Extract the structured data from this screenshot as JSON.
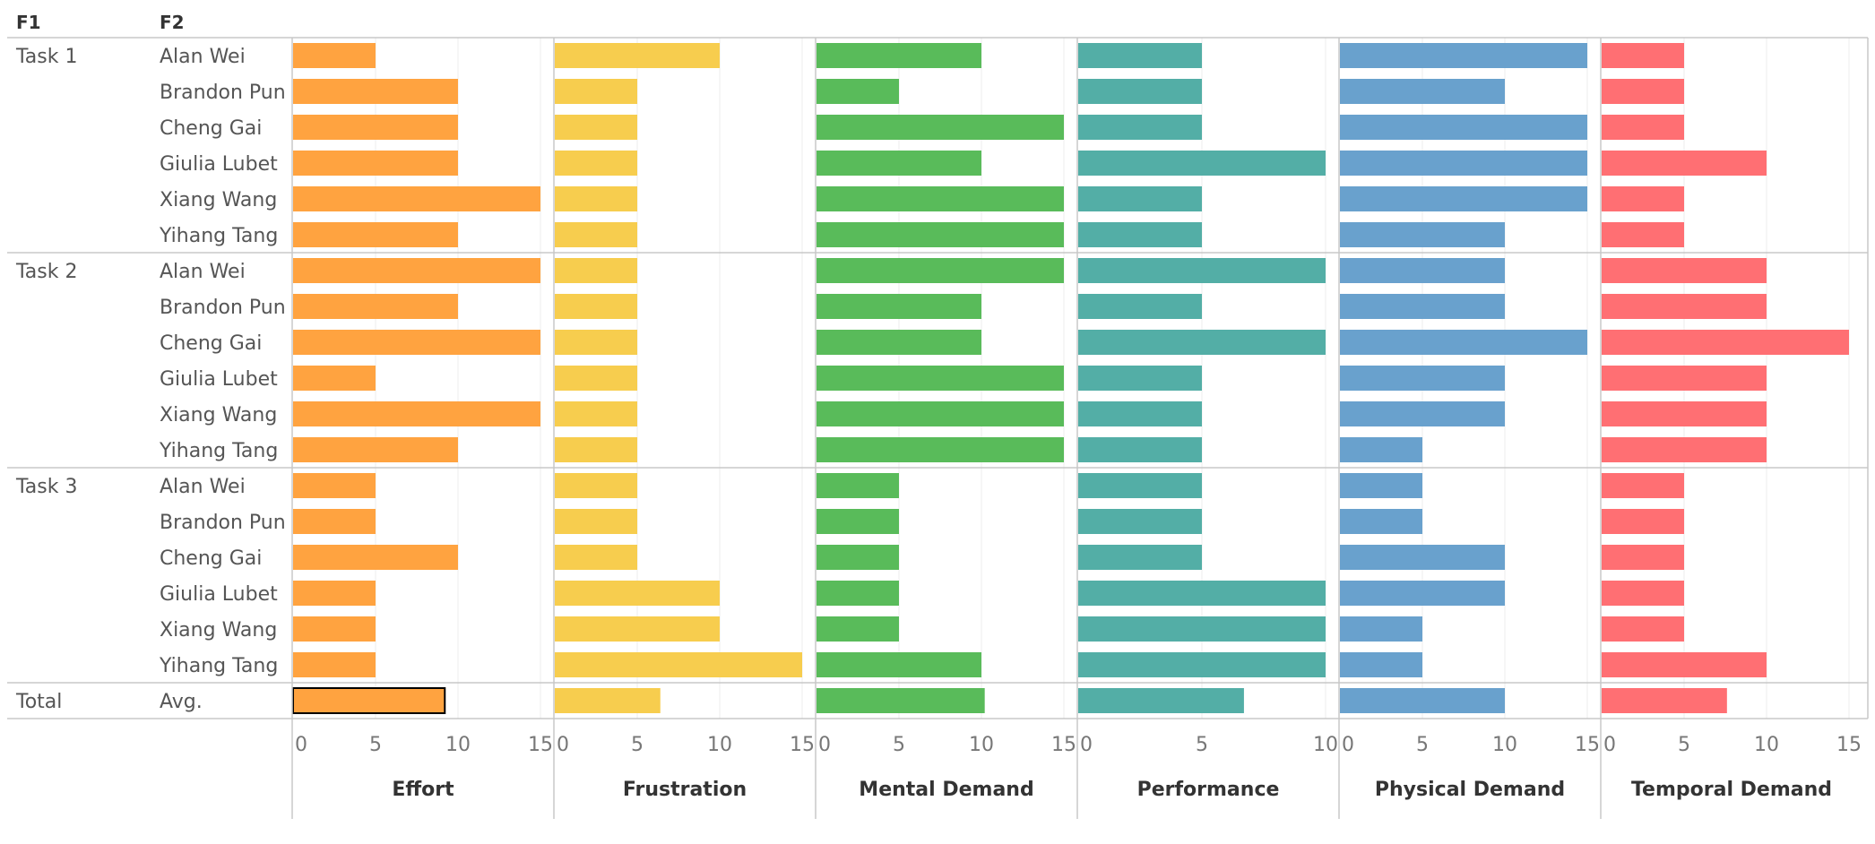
{
  "header": {
    "f1": "F1",
    "f2": "F2"
  },
  "chart_data": {
    "type": "bar",
    "orientation": "horizontal",
    "row_groups": [
      {
        "label": "Task 1",
        "names": [
          "Alan Wei",
          "Brandon Pun",
          "Cheng Gai",
          "Giulia Lubet",
          "Xiang Wang",
          "Yihang Tang"
        ]
      },
      {
        "label": "Task 2",
        "names": [
          "Alan Wei",
          "Brandon Pun",
          "Cheng Gai",
          "Giulia Lubet",
          "Xiang Wang",
          "Yihang Tang"
        ]
      },
      {
        "label": "Task 3",
        "names": [
          "Alan Wei",
          "Brandon Pun",
          "Cheng Gai",
          "Giulia Lubet",
          "Xiang Wang",
          "Yihang Tang"
        ]
      },
      {
        "label": "Total",
        "names": [
          "Avg."
        ]
      }
    ],
    "series": [
      {
        "name": "Effort",
        "color": "#FFA340",
        "xlim": [
          0,
          15
        ],
        "ticks": [
          0,
          5,
          10,
          15
        ],
        "values": [
          5,
          10,
          10,
          10,
          15,
          10,
          15,
          10,
          15,
          5,
          15,
          10,
          5,
          5,
          10,
          5,
          5,
          5,
          9.2
        ]
      },
      {
        "name": "Frustration",
        "color": "#F7CD4E",
        "xlim": [
          0,
          15
        ],
        "ticks": [
          0,
          5,
          10,
          15
        ],
        "values": [
          10,
          5,
          5,
          5,
          5,
          5,
          5,
          5,
          5,
          5,
          5,
          5,
          5,
          5,
          5,
          10,
          10,
          15,
          6.4
        ]
      },
      {
        "name": "Mental Demand",
        "color": "#59BB5A",
        "xlim": [
          0,
          15
        ],
        "ticks": [
          0,
          5,
          10,
          15
        ],
        "values": [
          10,
          5,
          15,
          10,
          15,
          15,
          15,
          10,
          10,
          15,
          15,
          15,
          5,
          5,
          5,
          5,
          5,
          10,
          10.2
        ]
      },
      {
        "name": "Performance",
        "color": "#53AEA6",
        "xlim": [
          0,
          10
        ],
        "ticks": [
          0,
          5,
          10
        ],
        "values": [
          5,
          5,
          5,
          10,
          5,
          5,
          10,
          5,
          10,
          5,
          5,
          5,
          5,
          5,
          5,
          10,
          10,
          10,
          6.7
        ]
      },
      {
        "name": "Physical Demand",
        "color": "#69A1CD",
        "xlim": [
          0,
          15
        ],
        "ticks": [
          0,
          5,
          10,
          15
        ],
        "values": [
          15,
          10,
          15,
          15,
          15,
          10,
          10,
          10,
          15,
          10,
          10,
          5,
          5,
          5,
          10,
          10,
          5,
          5,
          10
        ]
      },
      {
        "name": "Temporal Demand",
        "color": "#FF6F73",
        "xlim": [
          0,
          15
        ],
        "ticks": [
          0,
          5,
          10,
          15
        ],
        "values": [
          5,
          5,
          5,
          10,
          5,
          5,
          10,
          10,
          15,
          10,
          10,
          10,
          5,
          5,
          5,
          5,
          5,
          10,
          7.6
        ]
      }
    ],
    "highlighted": {
      "series": "Effort",
      "row": "Avg."
    },
    "grid": true,
    "legend": "none"
  }
}
